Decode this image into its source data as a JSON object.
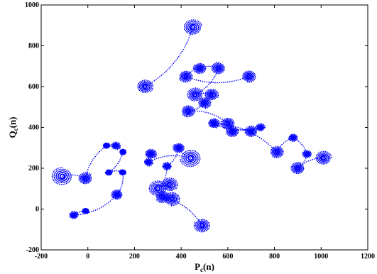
{
  "chart_data": {
    "type": "scatter",
    "xlabel": "P",
    "xlabel_sub": "c",
    "xlabel_suffix": "(n)",
    "ylabel": "Q",
    "ylabel_sub": "c",
    "ylabel_suffix": "(n)",
    "xlim": [
      -200,
      1200
    ],
    "ylim": [
      -200,
      1000
    ],
    "xticks": [
      "-200",
      "0",
      "200",
      "400",
      "600",
      "800",
      "1000",
      "1200"
    ],
    "yticks": [
      "-200",
      "0",
      "200",
      "400",
      "600",
      "800",
      "1000"
    ],
    "grid": false,
    "marker_color": "#0000ff",
    "series": [
      {
        "spirals": [
          {
            "x": 450,
            "y": 890,
            "r": 40
          },
          {
            "x": 245,
            "y": 600,
            "r": 35
          },
          {
            "x": 690,
            "y": 650,
            "r": 30
          },
          {
            "x": 420,
            "y": 650,
            "r": 30
          },
          {
            "x": 480,
            "y": 690,
            "r": 28
          },
          {
            "x": 560,
            "y": 690,
            "r": 30
          },
          {
            "x": 460,
            "y": 560,
            "r": 35
          },
          {
            "x": 530,
            "y": 560,
            "r": 30
          },
          {
            "x": 500,
            "y": 520,
            "r": 28
          },
          {
            "x": 430,
            "y": 480,
            "r": 30
          },
          {
            "x": 600,
            "y": 420,
            "r": 30
          },
          {
            "x": 620,
            "y": 380,
            "r": 28
          },
          {
            "x": 700,
            "y": 380,
            "r": 28
          },
          {
            "x": 740,
            "y": 400,
            "r": 20
          },
          {
            "x": 540,
            "y": 420,
            "r": 25
          },
          {
            "x": 810,
            "y": 280,
            "r": 30
          },
          {
            "x": 880,
            "y": 350,
            "r": 20
          },
          {
            "x": 940,
            "y": 270,
            "r": 20
          },
          {
            "x": 900,
            "y": 200,
            "r": 30
          },
          {
            "x": 1010,
            "y": 250,
            "r": 35
          },
          {
            "x": 270,
            "y": 270,
            "r": 25
          },
          {
            "x": 260,
            "y": 230,
            "r": 20
          },
          {
            "x": 440,
            "y": 250,
            "r": 45
          },
          {
            "x": 390,
            "y": 300,
            "r": 25
          },
          {
            "x": 340,
            "y": 210,
            "r": 20
          },
          {
            "x": 300,
            "y": 100,
            "r": 40
          },
          {
            "x": 350,
            "y": 120,
            "r": 35
          },
          {
            "x": 360,
            "y": 50,
            "r": 35
          },
          {
            "x": 320,
            "y": 60,
            "r": 30
          },
          {
            "x": 490,
            "y": -80,
            "r": 35
          },
          {
            "x": -110,
            "y": 160,
            "r": 45
          },
          {
            "x": -10,
            "y": 150,
            "r": 30
          },
          {
            "x": 80,
            "y": 310,
            "r": 15
          },
          {
            "x": 120,
            "y": 310,
            "r": 20
          },
          {
            "x": 150,
            "y": 280,
            "r": 15
          },
          {
            "x": 90,
            "y": 180,
            "r": 15
          },
          {
            "x": 150,
            "y": 180,
            "r": 15
          },
          {
            "x": 125,
            "y": 70,
            "r": 25
          },
          {
            "x": -60,
            "y": -30,
            "r": 20
          },
          {
            "x": -10,
            "y": -10,
            "r": 15
          }
        ]
      }
    ]
  }
}
